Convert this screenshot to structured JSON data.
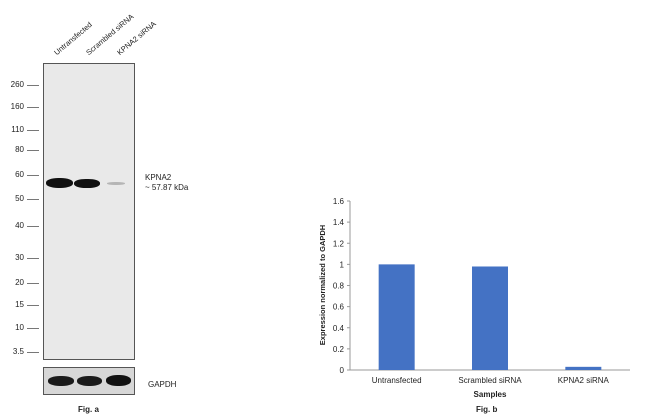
{
  "panel_a": {
    "lanes": [
      "Untransfected",
      "Scrambled siRNA",
      "KPNA2 siRNA"
    ],
    "mw_markers": [
      "260",
      "160",
      "110",
      "80",
      "60",
      "50",
      "40",
      "30",
      "20",
      "15",
      "10",
      "3.5"
    ],
    "target_label": "KPNA2",
    "target_size": "~ 57.87 kDa",
    "loading_control": "GAPDH",
    "caption": "Fig. a"
  },
  "panel_b": {
    "caption": "Fig. b"
  },
  "chart_data": {
    "type": "bar",
    "categories": [
      "Untransfected",
      "Scrambled siRNA",
      "KPNA2 siRNA"
    ],
    "values": [
      1.0,
      0.98,
      0.03
    ],
    "title": "",
    "xlabel": "Samples",
    "ylabel": "Expression normalized to GAPDH",
    "ylim": [
      0,
      1.6
    ],
    "yticks": [
      "0",
      "0.2",
      "0.4",
      "0.6",
      "0.8",
      "1",
      "1.2",
      "1.4",
      "1.6"
    ],
    "bar_color": "#4472c4",
    "grid": false
  }
}
